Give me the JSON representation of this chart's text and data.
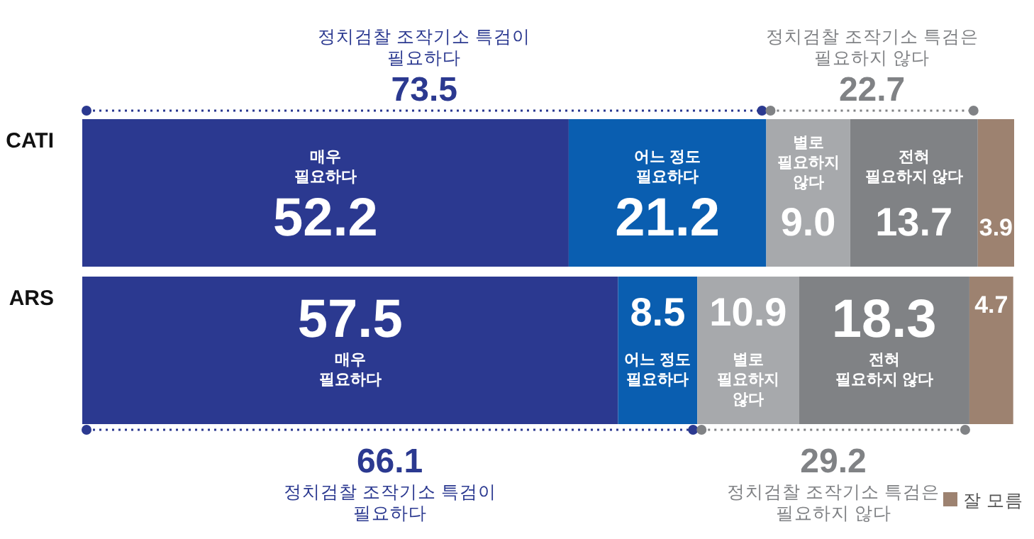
{
  "chart_data": {
    "type": "bar",
    "orientation": "horizontal",
    "stacked": true,
    "categories": [
      "CATI",
      "ARS"
    ],
    "xlim": [
      0,
      100
    ],
    "legend": "bottom right",
    "series": [
      {
        "name": "매우 필요하다",
        "color": "#2b3990",
        "values": [
          52.2,
          57.5
        ],
        "value_labels": [
          "52.2",
          "57.5"
        ]
      },
      {
        "name": "어느 정도 필요하다",
        "color": "#0a5eb0",
        "values": [
          21.2,
          8.5
        ],
        "value_labels": [
          "21.2",
          "8.5"
        ]
      },
      {
        "name": "별로 필요하지 않다",
        "color": "#a7a9ac",
        "values": [
          9.0,
          10.9
        ],
        "value_labels": [
          "9.0",
          "10.9"
        ]
      },
      {
        "name": "전혀 필요하지 않다",
        "color": "#808285",
        "values": [
          13.7,
          18.3
        ],
        "value_labels": [
          "13.7",
          "18.3"
        ]
      },
      {
        "name": "잘 모름",
        "color": "#9d8270",
        "values": [
          3.9,
          4.7
        ],
        "value_labels": [
          "3.9",
          "4.7"
        ]
      }
    ],
    "annotations": [
      "정치검찰 조작기소 특검이 필요하다",
      "73.5",
      "정치검찰 조작기소 특검은 필요하지 않다",
      "22.7",
      "정치검찰 조작기소 특검이 필요하다",
      "66.1",
      "정치검찰 조작기소 특검은 필요하지 않다",
      "29.2"
    ]
  }
}
